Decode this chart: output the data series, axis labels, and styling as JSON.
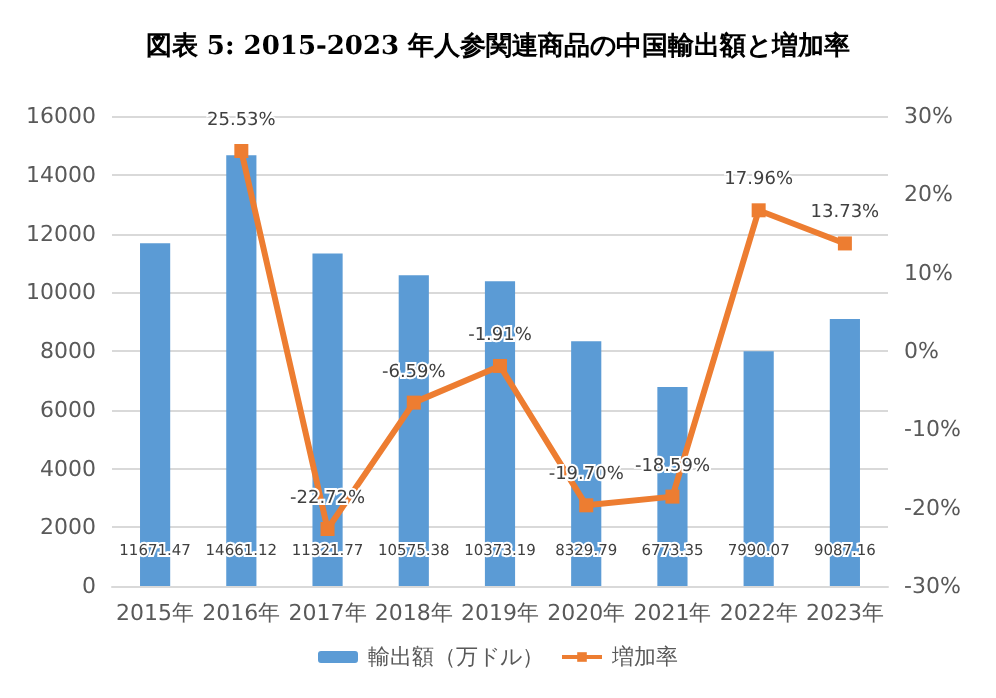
{
  "chart_data": {
    "type": "bar",
    "title": "図表 5: 2015-2023 年人参関連商品の中国輸出額と増加率",
    "categories": [
      "2015年",
      "2016年",
      "2017年",
      "2018年",
      "2019年",
      "2020年",
      "2021年",
      "2022年",
      "2023年"
    ],
    "series": [
      {
        "name": "輸出額（万ドル）",
        "color": "#5b9bd5",
        "values": [
          11671.47,
          14661.12,
          11321.77,
          10575.38,
          10373.19,
          8329.79,
          6773.35,
          7990.07,
          9087.16
        ],
        "value_labels": [
          "11671.47",
          "14661.12",
          "11321.77",
          "10575.38",
          "10373.19",
          "8329.79",
          "6773.35",
          "7990.07",
          "9087.16"
        ]
      },
      {
        "name": "増加率",
        "type": "line",
        "axis": "y2",
        "color": "#ed7d31",
        "marker": "square",
        "values": [
          null,
          25.53,
          -22.72,
          -6.59,
          -1.91,
          -19.7,
          -18.59,
          17.96,
          13.73
        ],
        "value_labels": [
          null,
          "25.53%",
          "-22.72%",
          "-6.59%",
          "-1.91%",
          "-19.70%",
          "-18.59%",
          "17.96%",
          "13.73%"
        ]
      }
    ],
    "ylim": [
      0,
      16000
    ],
    "yticks": [
      0,
      2000,
      4000,
      6000,
      8000,
      10000,
      12000,
      14000,
      16000
    ],
    "y2lim": [
      -30,
      30
    ],
    "y2ticks": [
      {
        "value": -30,
        "label": "-30%"
      },
      {
        "value": -20,
        "label": "-20%"
      },
      {
        "value": -10,
        "label": "-10%"
      },
      {
        "value": 0,
        "label": "0%"
      },
      {
        "value": 10,
        "label": "10%"
      },
      {
        "value": 20,
        "label": "20%"
      },
      {
        "value": 30,
        "label": "30%"
      }
    ],
    "grid": "y",
    "legend": "bottom"
  }
}
